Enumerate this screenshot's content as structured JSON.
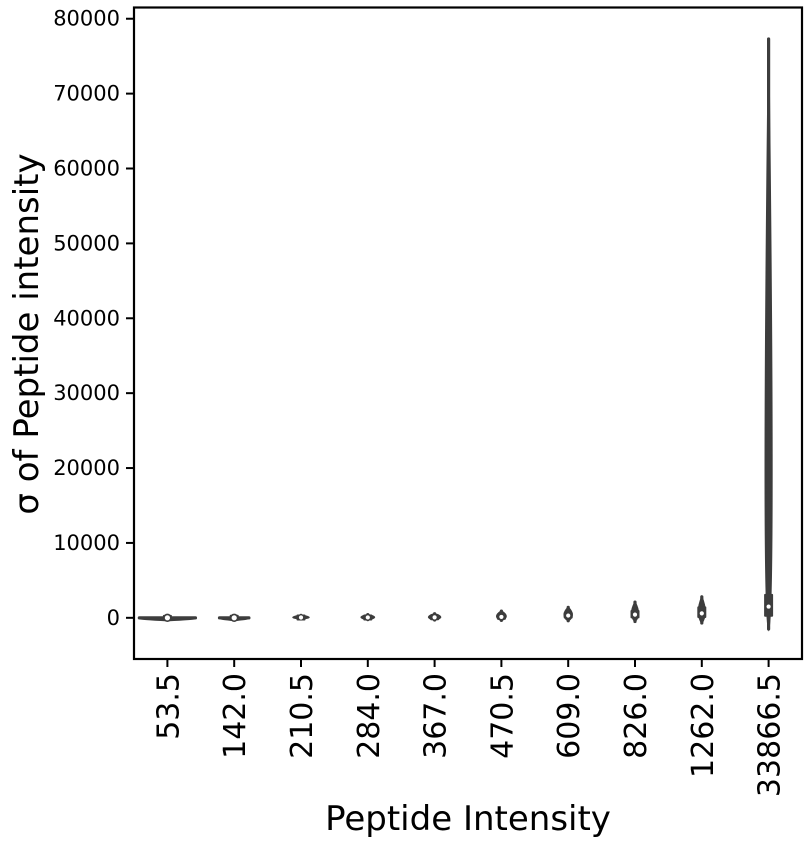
{
  "chart_data": {
    "type": "violin",
    "xlabel": "Peptide Intensity",
    "ylabel": "σ of Peptide intensity",
    "ylim": [
      -5500,
      81500
    ],
    "yticks": [
      0,
      10000,
      20000,
      30000,
      40000,
      50000,
      60000,
      70000,
      80000
    ],
    "ytick_labels": [
      "0",
      "10000",
      "20000",
      "30000",
      "40000",
      "50000",
      "60000",
      "70000",
      "80000"
    ],
    "categories": [
      "53.5",
      "142.0",
      "210.5",
      "284.0",
      "367.0",
      "470.5",
      "609.0",
      "826.0",
      "1262.0",
      "33866.5"
    ],
    "violins": [
      {
        "min": -20,
        "q1": -10,
        "median": 0,
        "q3": 10,
        "max": 30,
        "half_width": 0.42
      },
      {
        "min": -30,
        "q1": -10,
        "median": 0,
        "q3": 15,
        "max": 60,
        "half_width": 0.22
      },
      {
        "min": -150,
        "q1": -60,
        "median": 40,
        "q3": 150,
        "max": 330,
        "half_width": 0.12
      },
      {
        "min": -250,
        "q1": -90,
        "median": 50,
        "q3": 190,
        "max": 430,
        "half_width": 0.1
      },
      {
        "min": -300,
        "q1": -120,
        "median": 60,
        "q3": 270,
        "max": 550,
        "half_width": 0.09
      },
      {
        "min": -350,
        "q1": -130,
        "median": 120,
        "q3": 420,
        "max": 900,
        "half_width": 0.07
      },
      {
        "min": -400,
        "q1": -100,
        "median": 300,
        "q3": 760,
        "max": 1400,
        "half_width": 0.06
      },
      {
        "min": -500,
        "q1": -80,
        "median": 430,
        "q3": 1050,
        "max": 2100,
        "half_width": 0.05
      },
      {
        "min": -700,
        "q1": -20,
        "median": 590,
        "q3": 1520,
        "max": 2800,
        "half_width": 0.05
      },
      {
        "min": -1500,
        "q1": 150,
        "median": 1500,
        "q3": 3200,
        "max": 77300,
        "half_width": 0.05
      }
    ],
    "color": "#3d3d3d",
    "grid": false,
    "legend": "none"
  }
}
